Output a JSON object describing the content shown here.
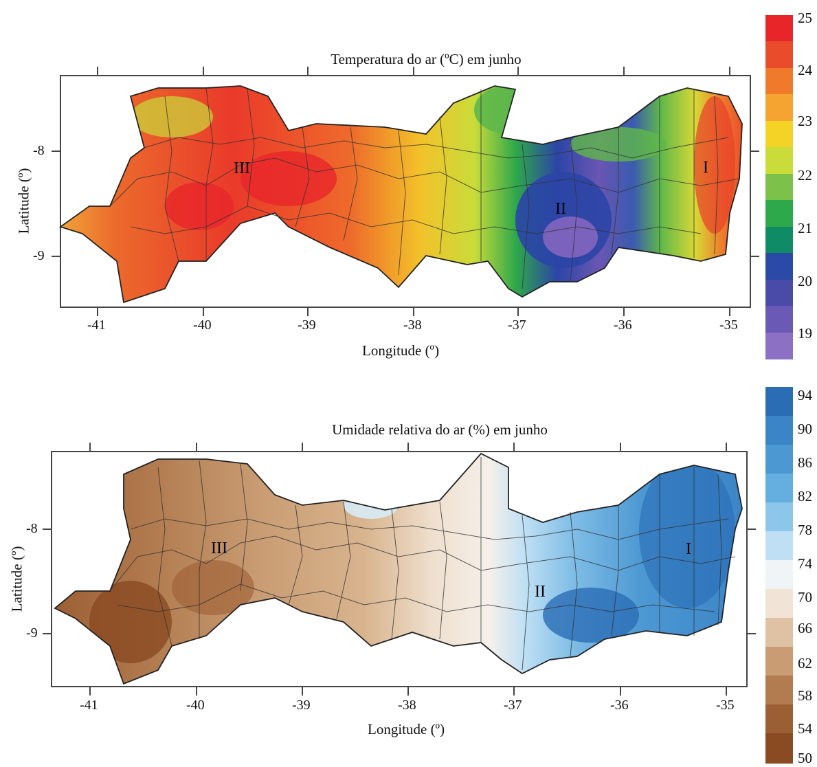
{
  "panels": [
    {
      "id": "temperature",
      "title": "Temperatura do ar (ºC) em junho",
      "xlabel": "Longitude (º)",
      "ylabel": "Latitude (º)",
      "xticks": [
        "-41",
        "-40",
        "-39",
        "-38",
        "-37",
        "-36",
        "-35"
      ],
      "yticks": [
        "-8",
        "-9"
      ],
      "colorbar": {
        "labels": [
          "25",
          "24",
          "23",
          "22",
          "21",
          "20",
          "19"
        ],
        "colors": [
          "#e8262a",
          "#ea4b2a",
          "#f07a2c",
          "#f5a331",
          "#f4d226",
          "#c9dc3a",
          "#7cc24a",
          "#2da84b",
          "#0f8c66",
          "#2b4aa8",
          "#4a4aa8",
          "#6b5ab5",
          "#8b70c4"
        ]
      },
      "regions": [
        "I",
        "II",
        "III"
      ]
    },
    {
      "id": "humidity",
      "title": "Umidade relativa do ar  (%) em junho",
      "xlabel": "Longitude (º)",
      "ylabel": "Latitude (º)",
      "xticks": [
        "-41",
        "-40",
        "-39",
        "-38",
        "-37",
        "-36",
        "-35"
      ],
      "yticks": [
        "-8",
        "-9"
      ],
      "colorbar": {
        "labels": [
          "94",
          "90",
          "86",
          "82",
          "78",
          "74",
          "70",
          "66",
          "62",
          "58",
          "54",
          "50"
        ],
        "colors": [
          "#2a6db5",
          "#3b84c6",
          "#4c98d3",
          "#65aee0",
          "#8cc6ea",
          "#bfe0f4",
          "#f1f4f6",
          "#f1e3d6",
          "#dfc2a3",
          "#c99c73",
          "#b27c50",
          "#9c5e33",
          "#8a4a22"
        ]
      },
      "regions": [
        "I",
        "II",
        "III"
      ]
    }
  ]
}
